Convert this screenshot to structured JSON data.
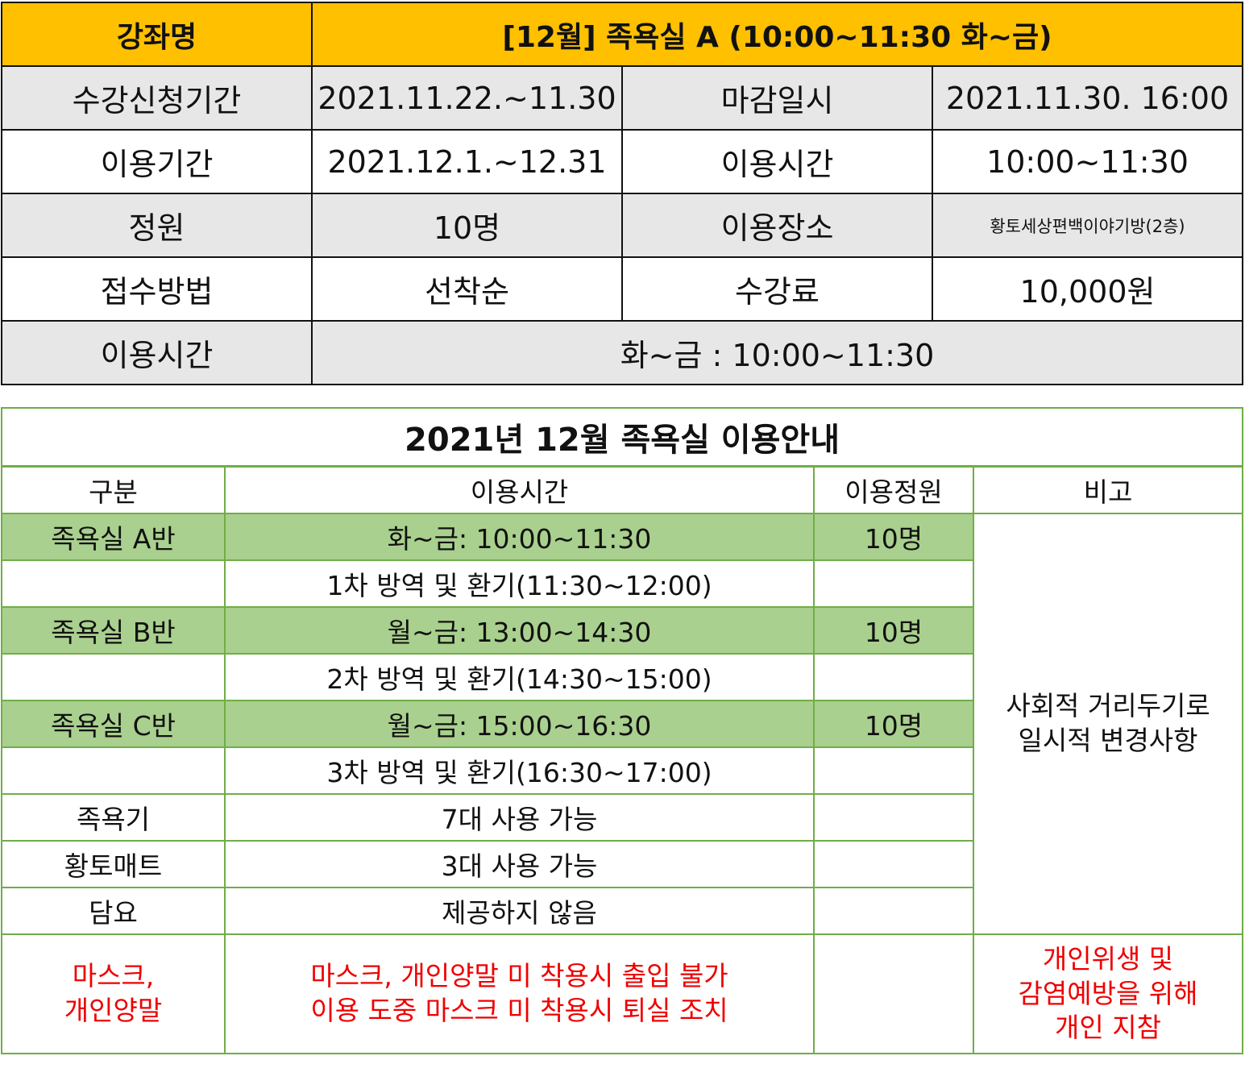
{
  "course": {
    "name_label": "강좌명",
    "name_value": "[12월] 족욕실 A (10:00~11:30 화~금)",
    "rows": [
      {
        "l1": "수강신청기간",
        "v1": "2021.11.22.~11.30",
        "l2": "마감일시",
        "v2": "2021.11.30. 16:00"
      },
      {
        "l1": "이용기간",
        "v1": "2021.12.1.~12.31",
        "l2": "이용시간",
        "v2": "10:00~11:30"
      },
      {
        "l1": "정원",
        "v1": "10명",
        "l2": "이용장소",
        "v2": "황토세상편백이야기방(2층)"
      },
      {
        "l1": "접수방법",
        "v1": "선착순",
        "l2": "수강료",
        "v2": "10,000원"
      }
    ],
    "time_label": "이용시간",
    "time_value": "화~금 : 10:00~11:30"
  },
  "guide": {
    "title": "2021년 12월 족욕실 이용안내",
    "headers": [
      "구분",
      "이용시간",
      "이용정원",
      "비고"
    ],
    "rows": [
      {
        "c": "족욕실 A반",
        "t": "화~금: 10:00~11:30",
        "n": "10명"
      },
      {
        "c": "",
        "t": "1차 방역 및 환기(11:30~12:00)",
        "n": ""
      },
      {
        "c": "족욕실 B반",
        "t": "월~금: 13:00~14:30",
        "n": "10명"
      },
      {
        "c": "",
        "t": "2차 방역 및 환기(14:30~15:00)",
        "n": ""
      },
      {
        "c": "족욕실 C반",
        "t": "월~금: 15:00~16:30",
        "n": "10명"
      },
      {
        "c": "",
        "t": "3차 방역 및 환기(16:30~17:00)",
        "n": ""
      },
      {
        "c": "족욕기",
        "t": "7대 사용 가능",
        "n": ""
      },
      {
        "c": "황토매트",
        "t": "3대 사용 가능",
        "n": ""
      },
      {
        "c": "담요",
        "t": "제공하지 않음",
        "n": ""
      }
    ],
    "note_line1": "사회적 거리두기로",
    "note_line2": "일시적 변경사항",
    "mask": {
      "c1": "마스크,",
      "c2": "개인양말",
      "t1": "마스크, 개인양말 미 착용시 출입 불가",
      "t2": "이용 도중 마스크 미 착용시 퇴실 조치",
      "r1": "개인위생 및",
      "r2": "감염예방을 위해",
      "r3": "개인 지참"
    },
    "colors": {
      "highlight": "#a9d08e",
      "border": "#70ad47",
      "warning": "#e00000"
    }
  }
}
